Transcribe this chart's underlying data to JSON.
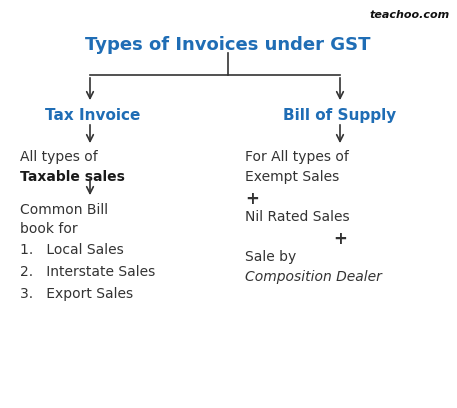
{
  "title": "Types of Invoices under GST",
  "title_color": "#1F6DB5",
  "title_fontsize": 13,
  "background_color": "#ffffff",
  "watermark": "teachoo.com",
  "watermark_color": "#111111",
  "left_header": "Tax Invoice",
  "left_header_color": "#1F6DB5",
  "right_header": "Bill of Supply",
  "right_header_color": "#1F6DB5",
  "left_content_line1": "All types of",
  "left_content_line2_bold": "Taxable sales",
  "left_content_line3": "Common Bill",
  "left_content_line4": "book for",
  "left_list": [
    "1.   Local Sales",
    "2.   Interstate Sales",
    "3.   Export Sales"
  ],
  "right_content_line1": "For All types of",
  "right_content_line2": "Exempt Sales",
  "right_content_plus1": "+",
  "right_content_line3": "Nil Rated Sales",
  "right_content_plus2": "+",
  "right_content_line4": "Sale by",
  "right_content_line5_italic": "Composition Dealer",
  "arrow_color": "#333333",
  "line_color": "#333333",
  "text_color": "#333333",
  "lw": 1.2
}
